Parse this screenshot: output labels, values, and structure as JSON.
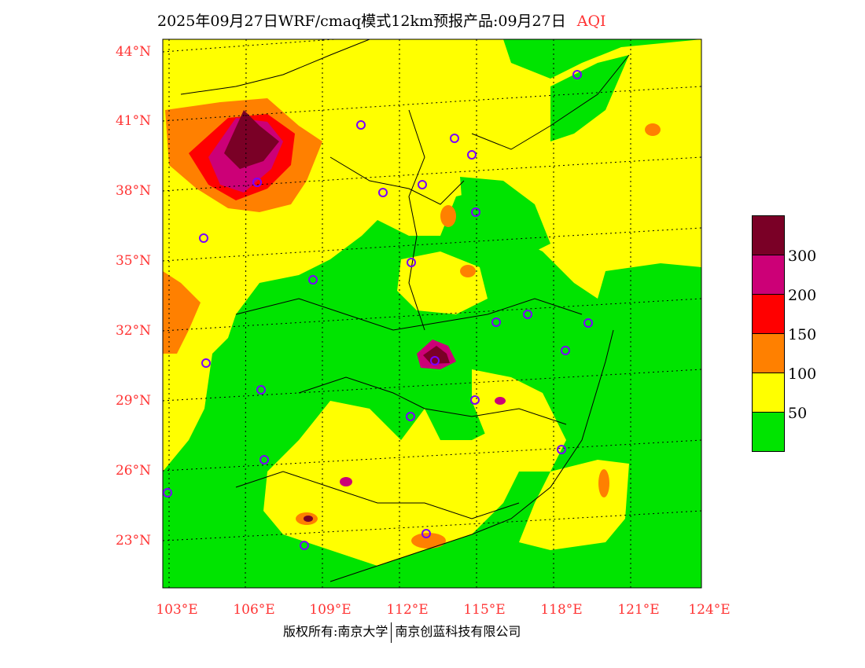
{
  "title": {
    "main": "2025年09月27日WRF/cmaq模式12km预报产品:09月27日",
    "variable": "AQI"
  },
  "axes": {
    "lat_labels": [
      "44°N",
      "41°N",
      "38°N",
      "35°N",
      "32°N",
      "29°N",
      "26°N",
      "23°N"
    ],
    "lon_labels": [
      "103°E",
      "106°E",
      "109°E",
      "112°E",
      "115°E",
      "118°E",
      "121°E",
      "124°E"
    ]
  },
  "legend": {
    "colors": [
      "#7a0026",
      "#cc0077",
      "#ff0000",
      "#ff8000",
      "#ffff00",
      "#00e400"
    ],
    "labels": [
      "300",
      "200",
      "150",
      "100",
      "50"
    ]
  },
  "footer": {
    "left": "版权所有:南京大学",
    "right": "南京创蓝科技有限公司"
  }
}
